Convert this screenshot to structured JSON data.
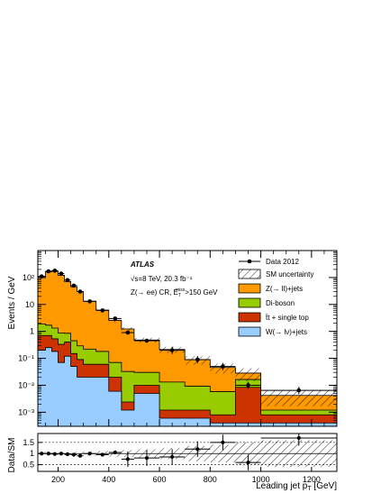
{
  "chart_data": {
    "type": "histogram",
    "title": "",
    "xlabel": "Leading jet p_T [GeV]",
    "ylabel": "Events / GeV",
    "ratio_ylabel": "Data/SM",
    "yscale": "log",
    "ylim": [
      0.0003,
      1000
    ],
    "xlim": [
      120,
      1300
    ],
    "x_ticks": [
      "200",
      "400",
      "600",
      "800",
      "1000",
      "1200"
    ],
    "y_ticks": [
      "10²",
      "10",
      "1",
      "10⁻¹",
      "10⁻²",
      "10⁻³"
    ],
    "ratio_ylim": [
      0.2,
      1.9
    ],
    "ratio_ticks": [
      "1.5",
      "1",
      "0.5"
    ],
    "annotations": {
      "experiment": "ATLAS",
      "energy": "√s=8 TeV, 20.3 fb⁻¹",
      "region": "Z(→ ee) CR, E",
      "region_sup": "miss",
      "region_sub": "T",
      "region_cut": ">150 GeV"
    },
    "bin_edges": [
      120,
      150,
      175,
      200,
      225,
      250,
      275,
      300,
      350,
      400,
      450,
      500,
      600,
      700,
      800,
      900,
      1000,
      1300
    ],
    "series": [
      {
        "name": "W(→ lν)+jets",
        "color": "#99ccff",
        "values": [
          0.2,
          0.25,
          0.18,
          0.07,
          0.12,
          0.05,
          0.02,
          0.02,
          0.02,
          0.006,
          0.0012,
          0.005,
          0.0006,
          0.0006,
          0.0004,
          0.0004,
          0.0004
        ]
      },
      {
        "name": "t̄t + single top",
        "color": "#cc3300",
        "values": [
          0.5,
          0.45,
          0.35,
          0.26,
          0.28,
          0.1,
          0.07,
          0.04,
          0.04,
          0.014,
          0.0012,
          0.005,
          0.0006,
          0.0006,
          0.0004,
          0.008,
          0.0004
        ]
      },
      {
        "name": "Di-boson",
        "color": "#99cc00",
        "values": [
          1.2,
          1.0,
          0.8,
          0.55,
          0.45,
          0.3,
          0.2,
          0.16,
          0.12,
          0.05,
          0.03,
          0.02,
          0.012,
          0.008,
          0.005,
          0.008,
          0.0004
        ]
      },
      {
        "name": "Z(→ ll)+jets",
        "color": "#ff9900",
        "values": [
          100,
          160,
          170,
          120,
          70,
          45,
          30,
          13,
          6,
          2.5,
          1.2,
          0.45,
          0.2,
          0.08,
          0.04,
          0.012,
          0.003
        ]
      }
    ],
    "data": {
      "name": "Data 2012",
      "x": [
        135,
        162,
        187,
        212,
        237,
        262,
        287,
        325,
        375,
        425,
        475,
        550,
        650,
        750,
        850,
        950,
        1150
      ],
      "y": [
        110,
        170,
        180,
        140,
        80,
        50,
        30,
        13,
        6,
        3,
        0.9,
        0.45,
        0.2,
        0.09,
        0.05,
        0.01,
        0.0065
      ],
      "ratio": [
        1.0,
        1.0,
        0.98,
        1.0,
        0.97,
        0.95,
        0.9,
        1.0,
        0.95,
        1.05,
        0.75,
        0.8,
        0.85,
        1.2,
        1.5,
        0.6,
        1.7
      ]
    },
    "uncertainty": {
      "name": "SM uncertainty"
    },
    "legend_placement": "top-right"
  }
}
